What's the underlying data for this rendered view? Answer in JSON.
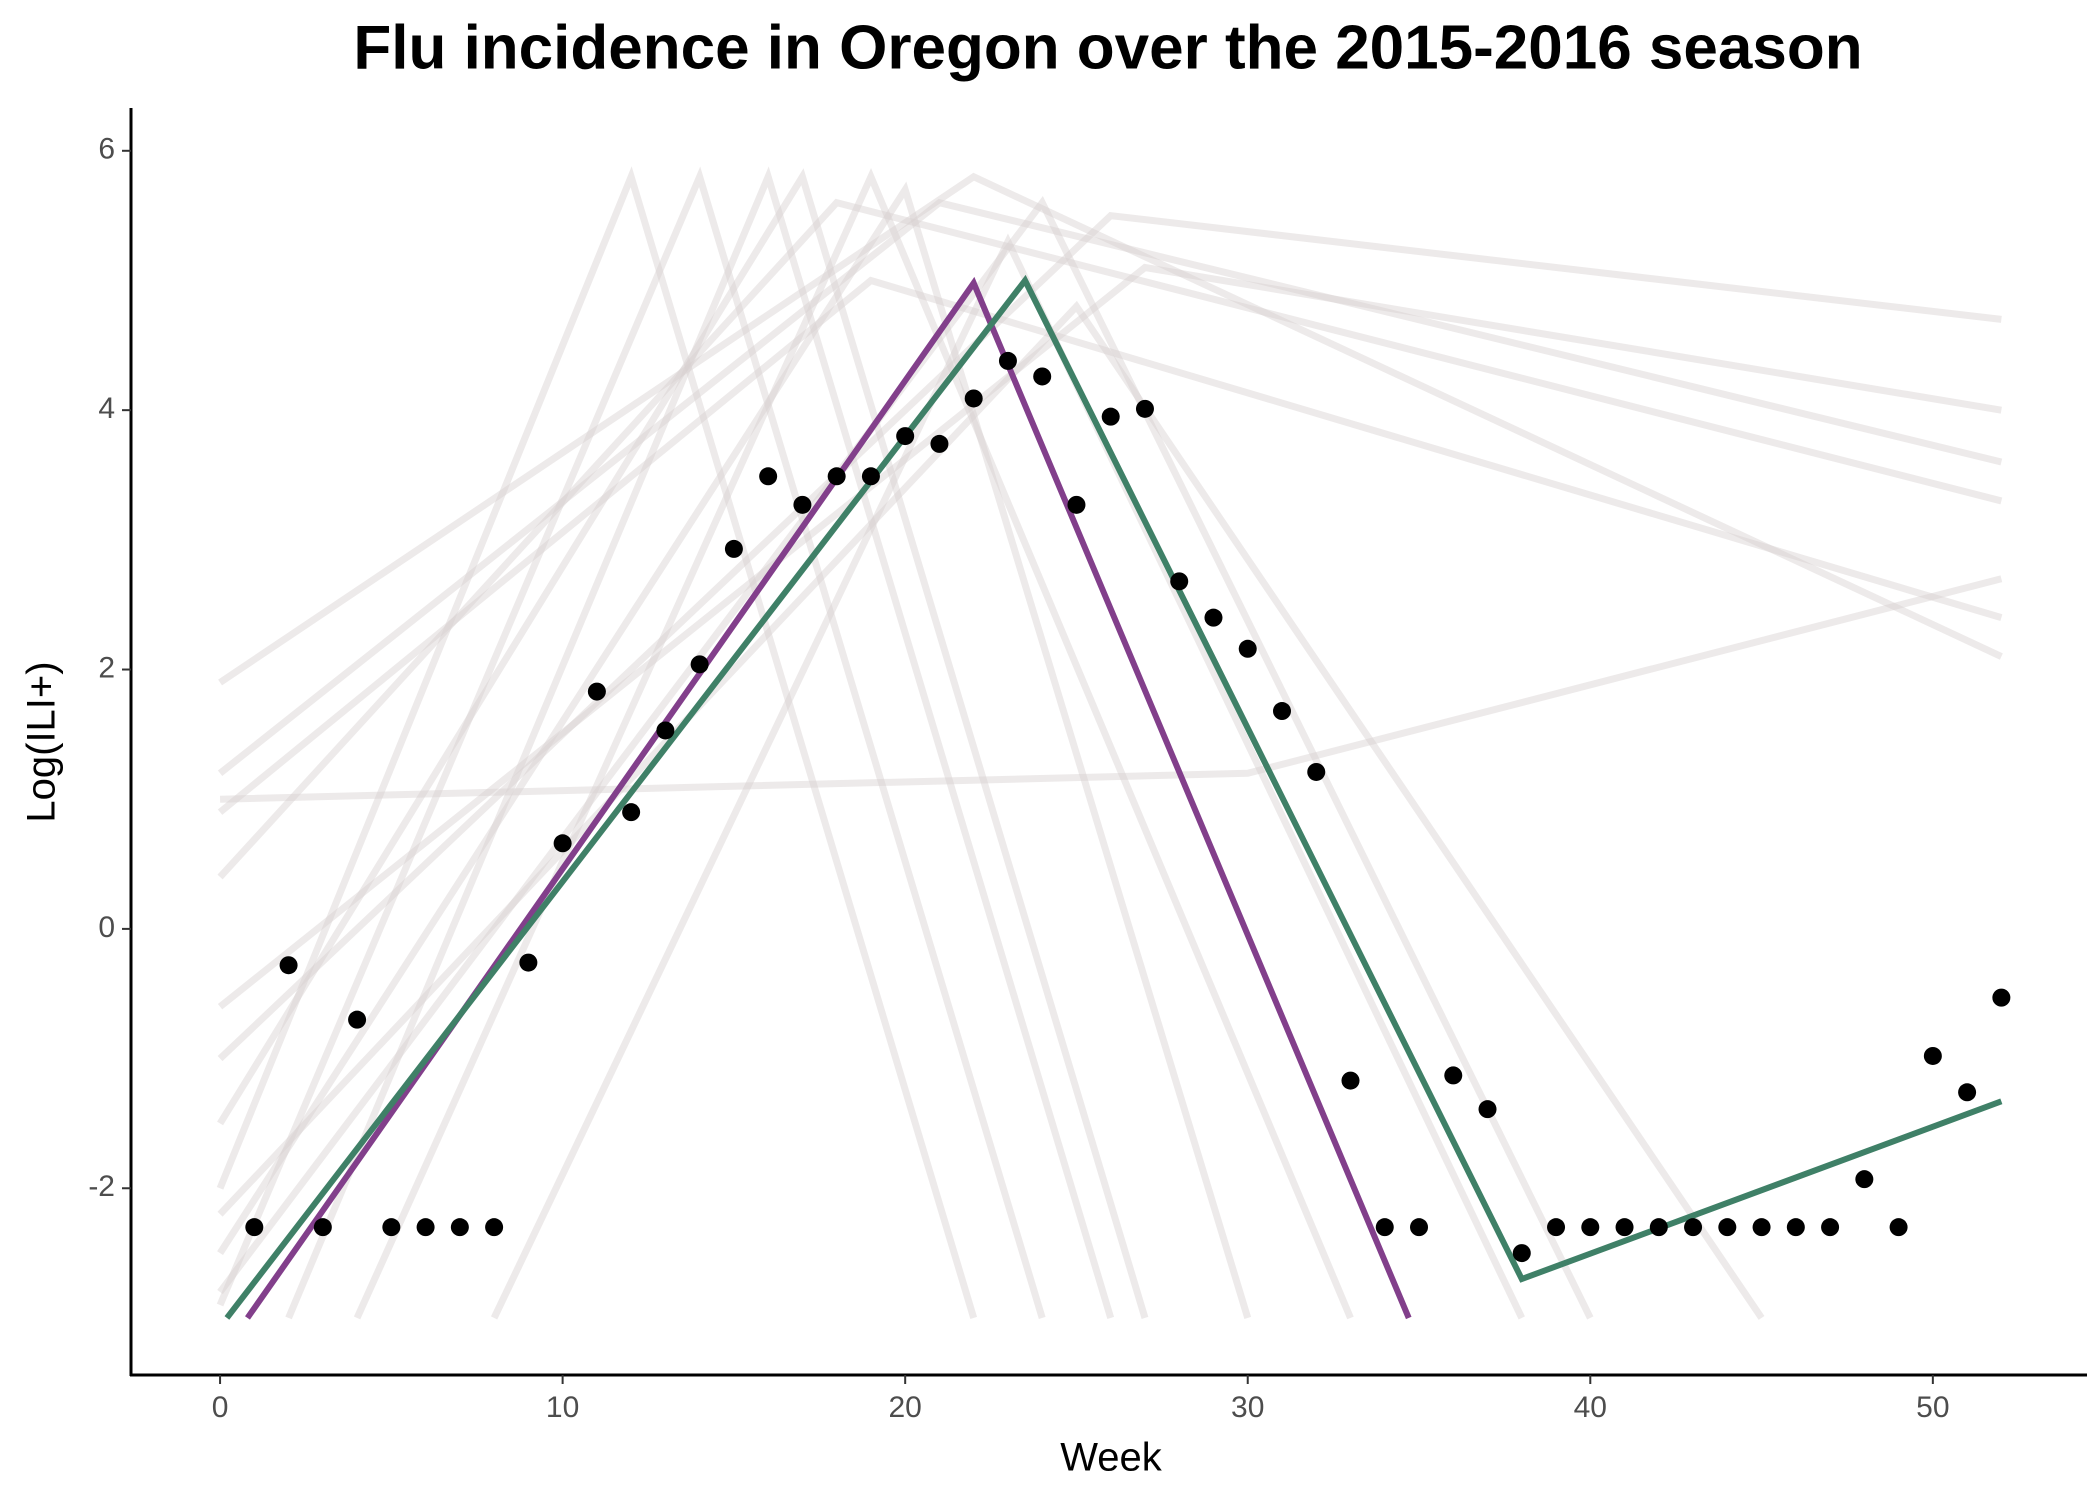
{
  "chart_data": {
    "type": "line",
    "title": "Flu incidence in Oregon over the 2015-2016 season",
    "x_label": "Week",
    "y_label": "Log(ILI+)",
    "xlim": [
      -2.6,
      54.5
    ],
    "ylim": [
      -3.44,
      6.33
    ],
    "xticks": [
      0,
      10,
      20,
      30,
      40,
      50
    ],
    "yticks": [
      -2,
      0,
      2,
      4,
      6
    ],
    "grid": false,
    "series": [
      {
        "kind": "line",
        "color": "#d8d0d0",
        "x": [
          0,
          14,
          24
        ],
        "values": [
          -2.9,
          5.8,
          -3
        ]
      },
      {
        "kind": "line",
        "color": "#d8d0d0",
        "x": [
          0,
          22,
          52
        ],
        "values": [
          1.9,
          5.8,
          2.1
        ]
      },
      {
        "kind": "line",
        "color": "#d8d0d0",
        "x": [
          0,
          18,
          52
        ],
        "values": [
          0.4,
          5.6,
          3.3
        ]
      },
      {
        "kind": "line",
        "color": "#d8d0d0",
        "x": [
          0,
          26,
          52
        ],
        "values": [
          -1,
          5.5,
          4.7
        ]
      },
      {
        "kind": "line",
        "color": "#d8d0d0",
        "x": [
          0,
          20,
          30
        ],
        "values": [
          -2.5,
          5.7,
          -3
        ]
      },
      {
        "kind": "line",
        "color": "#d8d0d0",
        "x": [
          0,
          17,
          27
        ],
        "values": [
          -1.5,
          5.8,
          -3
        ]
      },
      {
        "kind": "line",
        "color": "#d8d0d0",
        "x": [
          0,
          24,
          40
        ],
        "values": [
          -2.8,
          5.6,
          -3
        ]
      },
      {
        "kind": "line",
        "color": "#d8d0d0",
        "x": [
          0,
          30,
          52
        ],
        "values": [
          1.0,
          1.2,
          2.7
        ]
      },
      {
        "kind": "line",
        "color": "#d8d0d0",
        "x": [
          4,
          19,
          33
        ],
        "values": [
          -3,
          5.8,
          -3
        ]
      },
      {
        "kind": "line",
        "color": "#d8d0d0",
        "x": [
          8,
          23,
          38
        ],
        "values": [
          -3,
          5.3,
          -3
        ]
      },
      {
        "kind": "line",
        "color": "#d8d0d0",
        "x": [
          0,
          12,
          22
        ],
        "values": [
          -2,
          5.8,
          -3
        ]
      },
      {
        "kind": "line",
        "color": "#d8d0d0",
        "x": [
          0,
          21,
          52
        ],
        "values": [
          1.2,
          5.6,
          3.6
        ]
      },
      {
        "kind": "line",
        "color": "#d8d0d0",
        "x": [
          0,
          27,
          52
        ],
        "values": [
          -0.6,
          5.1,
          4.0
        ]
      },
      {
        "kind": "line",
        "color": "#d8d0d0",
        "x": [
          0,
          25,
          45
        ],
        "values": [
          -2.2,
          4.8,
          -3
        ]
      },
      {
        "kind": "line",
        "color": "#d8d0d0",
        "x": [
          0,
          19,
          52
        ],
        "values": [
          0.9,
          5.0,
          2.4
        ]
      },
      {
        "kind": "line",
        "color": "#d8d0d0",
        "x": [
          2,
          16,
          26
        ],
        "values": [
          -3,
          5.8,
          -3
        ]
      },
      {
        "kind": "line",
        "color": "#823f8b",
        "emphasis": true,
        "x": [
          0.8,
          22,
          34.7
        ],
        "values": [
          -3.0,
          4.98,
          -3.0
        ]
      },
      {
        "kind": "line",
        "color": "#3f8067",
        "emphasis": true,
        "x": [
          0.2,
          23.5,
          38,
          52
        ],
        "values": [
          -3.0,
          5.0,
          -2.7,
          -1.33
        ]
      },
      {
        "kind": "points",
        "color": "#000000",
        "x": [
          1,
          2,
          3,
          4,
          5,
          6,
          7,
          8,
          9,
          10,
          11,
          12,
          13,
          14,
          15,
          16,
          17,
          18,
          19,
          20,
          21,
          22,
          23,
          24,
          25,
          26,
          27,
          28,
          29,
          30,
          31,
          32,
          33,
          34,
          35,
          36,
          37,
          38,
          39,
          40,
          41,
          42,
          43,
          44,
          45,
          46,
          47,
          48,
          49,
          50,
          51,
          52
        ],
        "values": [
          -2.3,
          -0.28,
          -2.3,
          -0.7,
          -2.3,
          -2.3,
          -2.3,
          -2.3,
          -0.26,
          0.66,
          1.83,
          0.9,
          1.53,
          2.04,
          2.93,
          3.49,
          3.27,
          3.49,
          3.49,
          3.8,
          3.74,
          4.09,
          4.38,
          4.26,
          3.27,
          3.95,
          4.01,
          2.68,
          2.4,
          2.16,
          1.68,
          1.21,
          -1.17,
          -2.3,
          -2.3,
          -1.13,
          -1.39,
          -2.5,
          -2.3,
          -2.3,
          -2.3,
          -2.3,
          -2.3,
          -2.3,
          -2.3,
          -2.3,
          -2.3,
          -1.93,
          -2.3,
          -0.98,
          -1.26,
          -0.53
        ]
      }
    ]
  }
}
